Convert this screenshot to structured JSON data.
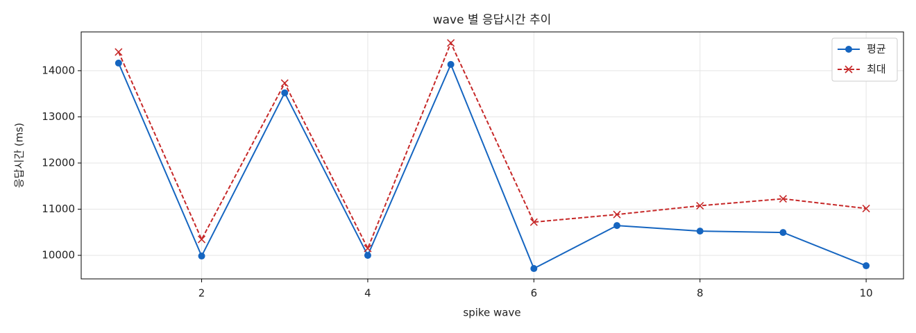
{
  "chart_data": {
    "type": "line",
    "title": "wave 별 응답시간 추이",
    "x_label": "spike wave",
    "y_label": "응답시간 (ms)",
    "x": [
      1,
      2,
      3,
      4,
      5,
      6,
      7,
      8,
      9,
      10
    ],
    "series": [
      {
        "name": "평균",
        "color": "#1565c0",
        "marker": "circle",
        "dash": "solid",
        "values": [
          14165,
          9985,
          13520,
          10000,
          14135,
          9715,
          10645,
          10525,
          10495,
          9775
        ]
      },
      {
        "name": "최대",
        "color": "#c62828",
        "marker": "x",
        "dash": "dashed",
        "values": [
          14405,
          10345,
          13730,
          10150,
          14600,
          10720,
          10885,
          11075,
          11225,
          11015
        ]
      }
    ],
    "xlim": [
      0.55,
      10.45
    ],
    "xticks": [
      2,
      4,
      6,
      8,
      10
    ],
    "ylim": [
      9490,
      14840
    ],
    "yticks": [
      10000,
      11000,
      12000,
      13000,
      14000
    ],
    "grid": true,
    "legend": "upper right"
  }
}
